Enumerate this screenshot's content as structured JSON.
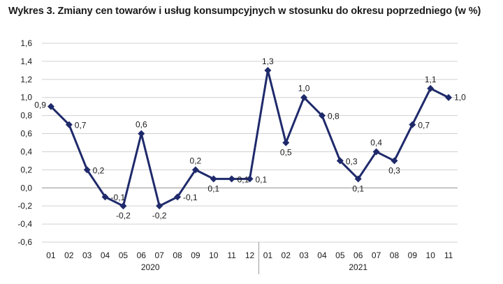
{
  "title": "Wykres 3. Zmiany cen towarów i usług konsumpcyjnych w stosunku do okresu poprzedniego (w %)",
  "chart_data": {
    "type": "line",
    "title": "Wykres 3. Zmiany cen towarów i usług konsumpcyjnych w stosunku do okresu poprzedniego (w %)",
    "xlabel": "",
    "ylabel": "",
    "ylim": [
      -0.6,
      1.6
    ],
    "yticks": [
      -0.6,
      -0.4,
      -0.2,
      0.0,
      0.2,
      0.4,
      0.6,
      0.8,
      1.0,
      1.2,
      1.4,
      1.6
    ],
    "ytick_labels": [
      "-0,6",
      "-0,4",
      "-0,2",
      "0,0",
      "0,2",
      "0,4",
      "0,6",
      "0,8",
      "1,0",
      "1,2",
      "1,4",
      "1,6"
    ],
    "grid": true,
    "legend": "none",
    "line_color": "#1f2a6b",
    "categories": [
      "01",
      "02",
      "03",
      "04",
      "05",
      "06",
      "07",
      "08",
      "09",
      "10",
      "11",
      "12",
      "01",
      "02",
      "03",
      "04",
      "05",
      "06",
      "07",
      "08",
      "09",
      "10",
      "11"
    ],
    "groups": [
      {
        "label": "2020",
        "count": 12
      },
      {
        "label": "2021",
        "count": 11
      }
    ],
    "values": [
      0.9,
      0.7,
      0.2,
      -0.1,
      -0.2,
      0.6,
      -0.2,
      -0.1,
      0.2,
      0.1,
      0.1,
      0.1,
      1.3,
      0.5,
      1.0,
      0.8,
      0.3,
      0.1,
      0.4,
      0.3,
      0.7,
      1.1,
      1.0
    ],
    "data_labels": [
      "0,9",
      "0,7",
      "0,2",
      "-0,1",
      "-0,2",
      "0,6",
      "-0,2",
      "-0,1",
      "0,2",
      "0,1",
      "0,1",
      "0,1",
      "1,3",
      "0,5",
      "1,0",
      "0,8",
      "0,3",
      "0,1",
      "0,4",
      "0,3",
      "0,7",
      "1,1",
      "1,0"
    ]
  }
}
